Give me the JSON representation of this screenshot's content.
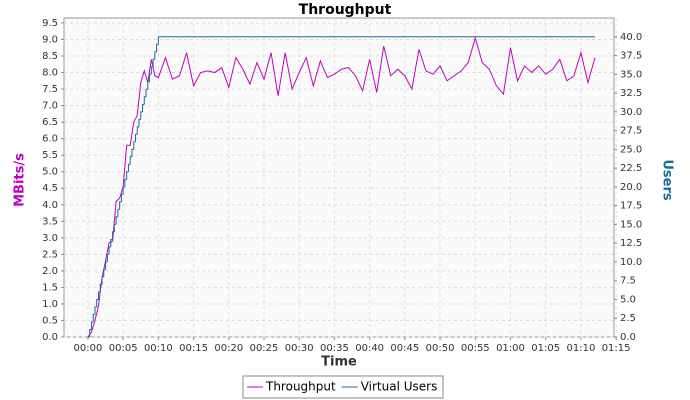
{
  "chart_data": {
    "type": "line",
    "title": "Throughput",
    "x_label": "Time",
    "y_label": "MBits/s",
    "y2_label": "Users",
    "xlim": [
      -3.4,
      74.7
    ],
    "ylim": [
      0,
      9.65
    ],
    "y2lim": [
      0,
      42.5
    ],
    "grid": true,
    "legend": "bottom",
    "xticks": [
      {
        "value": 0,
        "label": "00:00"
      },
      {
        "value": 5,
        "label": "00:05"
      },
      {
        "value": 10,
        "label": "00:10"
      },
      {
        "value": 15,
        "label": "00:15"
      },
      {
        "value": 20,
        "label": "00:20"
      },
      {
        "value": 25,
        "label": "00:25"
      },
      {
        "value": 30,
        "label": "00:30"
      },
      {
        "value": 35,
        "label": "00:35"
      },
      {
        "value": 40,
        "label": "00:40"
      },
      {
        "value": 45,
        "label": "00:45"
      },
      {
        "value": 50,
        "label": "00:50"
      },
      {
        "value": 55,
        "label": "00:55"
      },
      {
        "value": 60,
        "label": "01:00"
      },
      {
        "value": 65,
        "label": "01:05"
      },
      {
        "value": 70,
        "label": "01:10"
      },
      {
        "value": 75,
        "label": "01:15"
      }
    ],
    "yticks": [
      {
        "value": 0,
        "label": "0.0"
      },
      {
        "value": 0.5,
        "label": "0.5"
      },
      {
        "value": 1,
        "label": "1.0"
      },
      {
        "value": 1.5,
        "label": "1.5"
      },
      {
        "value": 2,
        "label": "2.0"
      },
      {
        "value": 2.5,
        "label": "2.5"
      },
      {
        "value": 3,
        "label": "3.0"
      },
      {
        "value": 3.5,
        "label": "3.5"
      },
      {
        "value": 4,
        "label": "4.0"
      },
      {
        "value": 4.5,
        "label": "4.5"
      },
      {
        "value": 5,
        "label": "5.0"
      },
      {
        "value": 5.5,
        "label": "5.5"
      },
      {
        "value": 6,
        "label": "6.0"
      },
      {
        "value": 6.5,
        "label": "6.5"
      },
      {
        "value": 7,
        "label": "7.0"
      },
      {
        "value": 7.5,
        "label": "7.5"
      },
      {
        "value": 8,
        "label": "8.0"
      },
      {
        "value": 8.5,
        "label": "8.5"
      },
      {
        "value": 9,
        "label": "9.0"
      },
      {
        "value": 9.5,
        "label": "9.5"
      }
    ],
    "y2ticks": [
      {
        "value": 0,
        "label": "0.0"
      },
      {
        "value": 2.5,
        "label": "2.5"
      },
      {
        "value": 5,
        "label": "5.0"
      },
      {
        "value": 7.5,
        "label": "7.5"
      },
      {
        "value": 10,
        "label": "10.0"
      },
      {
        "value": 12.5,
        "label": "12.5"
      },
      {
        "value": 15,
        "label": "15.0"
      },
      {
        "value": 17.5,
        "label": "17.5"
      },
      {
        "value": 20,
        "label": "20.0"
      },
      {
        "value": 22.5,
        "label": "22.5"
      },
      {
        "value": 25,
        "label": "25.0"
      },
      {
        "value": 27.5,
        "label": "27.5"
      },
      {
        "value": 30,
        "label": "30.0"
      },
      {
        "value": 32.5,
        "label": "32.5"
      },
      {
        "value": 35,
        "label": "35.0"
      },
      {
        "value": 37.5,
        "label": "37.5"
      },
      {
        "value": 40,
        "label": "40.0"
      }
    ],
    "series": [
      {
        "name": "Throughput",
        "color": "#c000c0",
        "step": false,
        "x": [
          0,
          0.5,
          1,
          1.5,
          2,
          2.5,
          3,
          3.5,
          4,
          4.5,
          5,
          5.5,
          6,
          6.5,
          7,
          7.5,
          8,
          8.5,
          9,
          9.5,
          10,
          11,
          12,
          13,
          14,
          15,
          16,
          17,
          18,
          19,
          20,
          21,
          22,
          23,
          24,
          25,
          26,
          27,
          28,
          29,
          30,
          31,
          32,
          33,
          34,
          35,
          36,
          37,
          38,
          39,
          40,
          41,
          42,
          43,
          44,
          45,
          46,
          47,
          48,
          49,
          50,
          51,
          52,
          53,
          54,
          55,
          56,
          57,
          58,
          59,
          60,
          61,
          62,
          63,
          64,
          65,
          66,
          67,
          68,
          69,
          70,
          71,
          72
        ],
        "values": [
          0.0,
          0.15,
          0.5,
          0.95,
          1.8,
          2.3,
          2.85,
          2.9,
          4.1,
          4.2,
          4.55,
          5.8,
          5.8,
          6.5,
          6.7,
          7.7,
          8.05,
          7.7,
          8.4,
          7.9,
          7.85,
          8.45,
          7.8,
          7.9,
          8.6,
          7.6,
          8.0,
          8.05,
          8.0,
          8.15,
          7.55,
          8.45,
          8.1,
          7.65,
          8.3,
          7.8,
          8.6,
          7.3,
          8.6,
          7.5,
          8.0,
          8.45,
          7.6,
          8.35,
          7.85,
          7.95,
          8.1,
          8.15,
          7.9,
          7.45,
          8.4,
          7.4,
          8.8,
          7.9,
          8.1,
          7.9,
          7.5,
          8.7,
          8.05,
          7.95,
          8.2,
          7.75,
          7.9,
          8.05,
          8.3,
          9.05,
          8.3,
          8.1,
          7.6,
          7.35,
          8.75,
          7.75,
          8.2,
          8.0,
          8.2,
          7.95,
          8.1,
          8.4,
          7.75,
          7.9,
          8.6,
          7.7,
          8.45
        ]
      },
      {
        "name": "Virtual Users",
        "color": "#1a6a9a",
        "axis": "y2",
        "step": true,
        "x": [
          0,
          0.25,
          0.5,
          0.75,
          1,
          1.25,
          1.5,
          1.75,
          2,
          2.25,
          2.5,
          2.75,
          3,
          3.25,
          3.5,
          3.75,
          4,
          4.25,
          4.5,
          4.75,
          5,
          5.25,
          5.5,
          5.75,
          6,
          6.25,
          6.5,
          6.75,
          7,
          7.25,
          7.5,
          7.75,
          8,
          8.25,
          8.5,
          8.75,
          9,
          9.25,
          9.5,
          9.75,
          10,
          72
        ],
        "values": [
          0,
          1,
          2,
          3,
          4,
          5,
          6,
          7,
          8,
          9,
          10,
          11,
          12,
          13,
          14,
          15,
          16,
          17,
          18,
          19,
          20,
          21,
          22,
          23,
          24,
          25,
          26,
          27,
          28,
          29,
          30,
          31,
          32,
          33,
          34,
          35,
          36,
          37,
          38,
          39,
          40,
          40
        ]
      }
    ]
  }
}
